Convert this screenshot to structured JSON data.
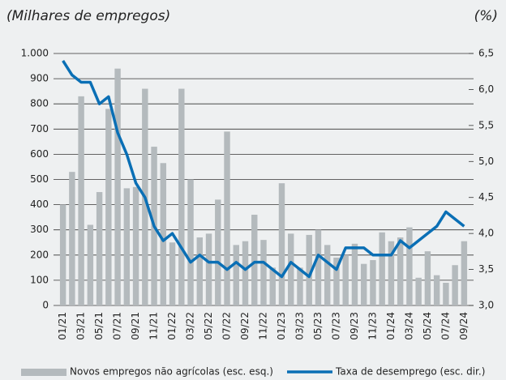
{
  "chart_data": {
    "type": "bar_line",
    "title": "(Milhares de empregos)",
    "y2_title": "(%)",
    "categories": [
      "01/21",
      null,
      "03/21",
      null,
      "05/21",
      null,
      "07/21",
      null,
      "09/21",
      null,
      "11/21",
      null,
      "01/22",
      null,
      "03/22",
      null,
      "05/22",
      null,
      "07/22",
      null,
      "09/22",
      null,
      "11/22",
      null,
      "01/23",
      null,
      "03/23",
      null,
      "05/23",
      null,
      "07/23",
      null,
      "09/23",
      null,
      "11/23",
      null,
      "01/24",
      null,
      "03/24",
      null,
      "05/24",
      null,
      "07/24",
      null,
      "09/24"
    ],
    "series": [
      {
        "name": "Novos empregos não agrícolas (esc. esq.)",
        "type": "bar",
        "color": "#b4babd",
        "values": [
          400,
          530,
          830,
          320,
          450,
          780,
          940,
          465,
          470,
          860,
          630,
          565,
          250,
          860,
          500,
          270,
          285,
          420,
          690,
          240,
          255,
          360,
          260,
          150,
          485,
          285,
          150,
          280,
          300,
          240,
          190,
          200,
          245,
          165,
          180,
          290,
          255,
          270,
          310,
          110,
          215,
          120,
          90,
          160,
          255
        ]
      },
      {
        "name": "Taxa de desemprego (esc. dir.)",
        "type": "line",
        "axis": "y2",
        "color": "#0a6fb5",
        "values": [
          6.4,
          6.2,
          6.1,
          6.1,
          5.8,
          5.9,
          5.4,
          5.1,
          4.7,
          4.5,
          4.1,
          3.9,
          4.0,
          3.8,
          3.6,
          3.7,
          3.6,
          3.6,
          3.5,
          3.6,
          3.5,
          3.6,
          3.6,
          3.5,
          3.4,
          3.6,
          3.5,
          3.4,
          3.7,
          3.6,
          3.5,
          3.8,
          3.8,
          3.8,
          3.7,
          3.7,
          3.7,
          3.9,
          3.8,
          3.9,
          4.0,
          4.1,
          4.3,
          4.2,
          4.1
        ]
      }
    ],
    "ylim": [
      0,
      1000
    ],
    "yticks": [
      0,
      100,
      200,
      300,
      400,
      500,
      600,
      700,
      800,
      900,
      {
        "value": 1000,
        "label": "1.000"
      }
    ],
    "y2lim": [
      3.0,
      6.5
    ],
    "y2ticks": [
      {
        "value": 3.0,
        "label": "3,0"
      },
      {
        "value": 3.5,
        "label": "3,5"
      },
      {
        "value": 4.0,
        "label": "4,0"
      },
      {
        "value": 4.5,
        "label": "4,5"
      },
      {
        "value": 5.0,
        "label": "5,0"
      },
      {
        "value": 5.5,
        "label": "5,5"
      },
      {
        "value": 6.0,
        "label": "6,0"
      },
      {
        "value": 6.5,
        "label": "6,5"
      }
    ],
    "grid": true,
    "legend": "bottom"
  }
}
